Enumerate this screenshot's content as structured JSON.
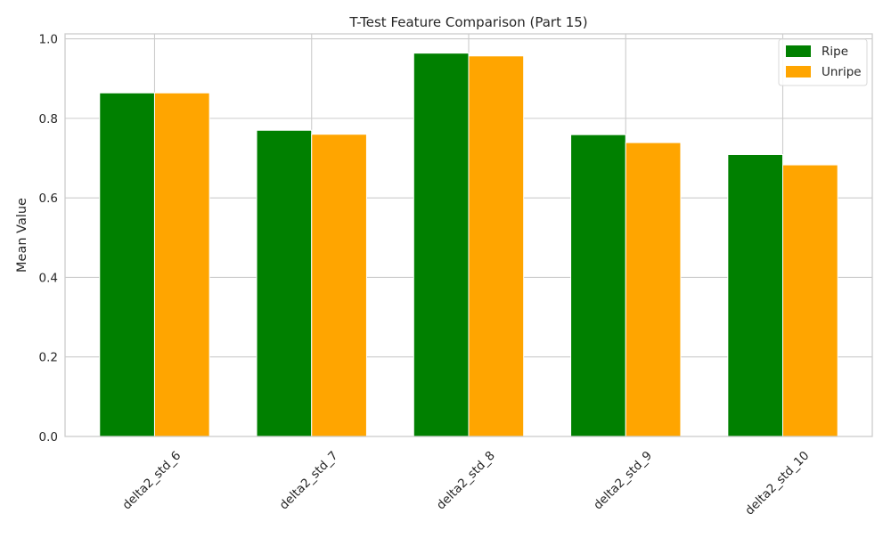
{
  "chart_data": {
    "type": "bar",
    "title": "T-Test Feature Comparison (Part 15)",
    "xlabel": "",
    "ylabel": "Mean Value",
    "categories": [
      "delta2_std_6",
      "delta2_std_7",
      "delta2_std_8",
      "delta2_std_9",
      "delta2_std_10"
    ],
    "series": [
      {
        "name": "Ripe",
        "color": "#008000",
        "values": [
          0.864,
          0.77,
          0.964,
          0.759,
          0.709
        ]
      },
      {
        "name": "Unripe",
        "color": "#ffa500",
        "values": [
          0.864,
          0.76,
          0.957,
          0.739,
          0.683
        ]
      }
    ],
    "ylim": [
      0,
      1.0
    ],
    "yticks": [
      0.0,
      0.2,
      0.4,
      0.6,
      0.8,
      1.0
    ],
    "ytick_labels": [
      "0.0",
      "0.2",
      "0.4",
      "0.6",
      "0.8",
      "1.0"
    ],
    "grid": true,
    "legend_position": "top-right"
  }
}
